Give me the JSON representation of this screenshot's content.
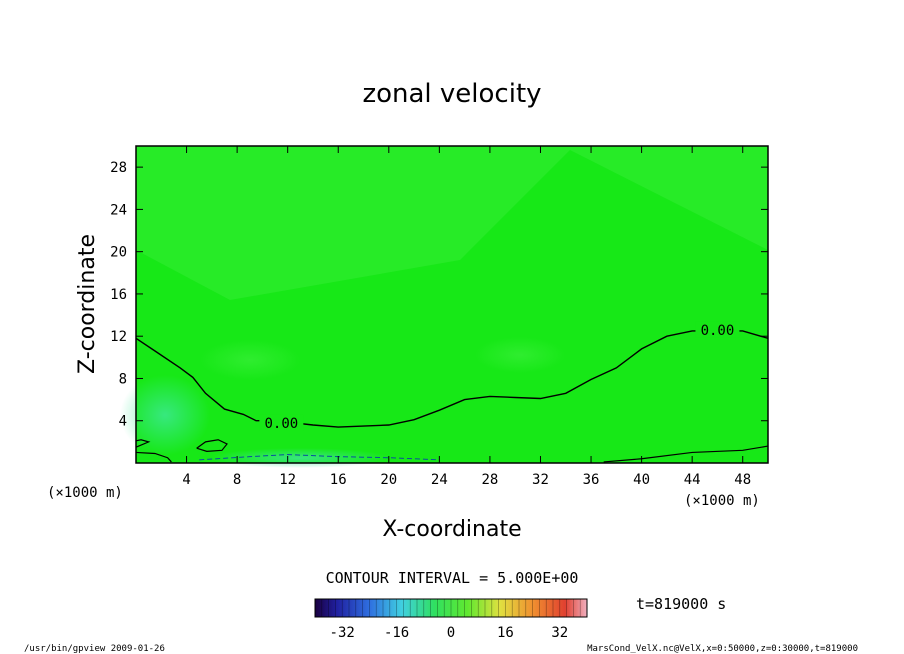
{
  "chart_data": {
    "type": "heatmap",
    "title": "zonal velocity",
    "xlabel": "X-coordinate",
    "ylabel": "Z-coordinate",
    "x_unit": "(×1000 m)",
    "y_unit": "(×1000 m)",
    "xlim": [
      0,
      50
    ],
    "ylim": [
      0,
      30
    ],
    "x_ticks": [
      "4",
      "8",
      "12",
      "16",
      "20",
      "24",
      "28",
      "32",
      "36",
      "40",
      "44",
      "48"
    ],
    "y_ticks": [
      "4",
      "8",
      "12",
      "16",
      "20",
      "24",
      "28"
    ],
    "contour_label": "0.00",
    "zero_contour": [
      {
        "x": 0,
        "z": 11.8
      },
      {
        "x": 1.5,
        "z": 10.6
      },
      {
        "x": 3.5,
        "z": 9.0
      },
      {
        "x": 4.5,
        "z": 8.1
      },
      {
        "x": 5.5,
        "z": 6.6
      },
      {
        "x": 7,
        "z": 5.1
      },
      {
        "x": 8.5,
        "z": 4.6
      },
      {
        "x": 9.5,
        "z": 4.0
      },
      {
        "x": 11,
        "z": 4.0
      },
      {
        "x": 14,
        "z": 3.6
      },
      {
        "x": 16,
        "z": 3.4
      },
      {
        "x": 20,
        "z": 3.6
      },
      {
        "x": 22,
        "z": 4.1
      },
      {
        "x": 24,
        "z": 5.0
      },
      {
        "x": 26,
        "z": 6.0
      },
      {
        "x": 28,
        "z": 6.3
      },
      {
        "x": 30,
        "z": 6.2
      },
      {
        "x": 32,
        "z": 6.1
      },
      {
        "x": 34,
        "z": 6.6
      },
      {
        "x": 36,
        "z": 7.9
      },
      {
        "x": 38,
        "z": 9.0
      },
      {
        "x": 40,
        "z": 10.8
      },
      {
        "x": 42,
        "z": 12.0
      },
      {
        "x": 44,
        "z": 12.5
      },
      {
        "x": 46,
        "z": 12.5
      },
      {
        "x": 48,
        "z": 12.5
      },
      {
        "x": 50,
        "z": 11.8
      }
    ],
    "contour_interval": "CONTOUR INTERVAL = 5.000E+00",
    "colorbar_ticks": [
      "-32",
      "-16",
      "0",
      "16",
      "32"
    ],
    "colorbar_range": [
      -40,
      40
    ],
    "time_label": "t=819000 s",
    "colors": {
      "field_base": "#17e817",
      "field_light": "#3ff03f",
      "field_cyan": "#3fe898",
      "contour": "#000000",
      "frame": "#000000"
    }
  },
  "footer": {
    "left": "/usr/bin/gpview  2009-01-26",
    "right": "MarsCond_VelX.nc@VelX,x=0:50000,z=0:30000,t=819000"
  }
}
